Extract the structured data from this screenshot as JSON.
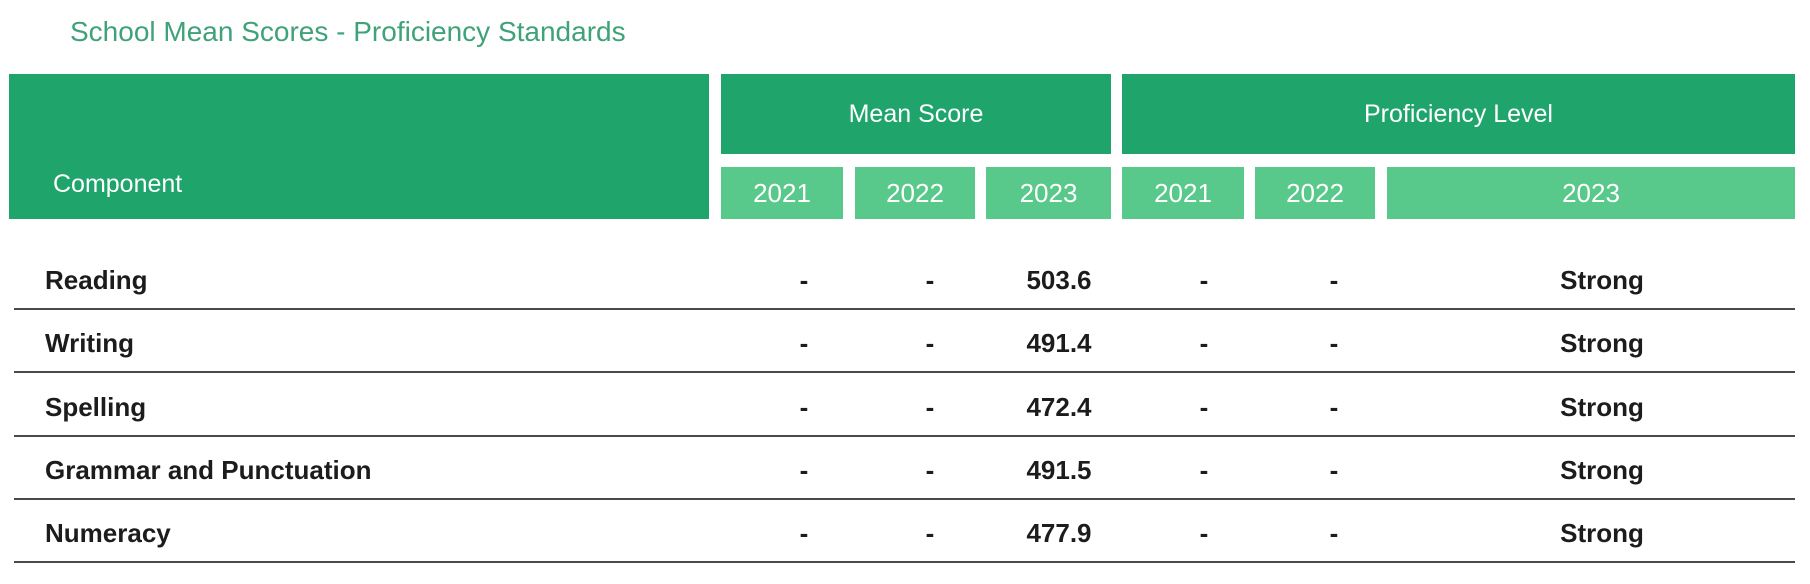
{
  "title": "School Mean Scores - Proficiency Standards",
  "header": {
    "component": "Component",
    "mean_score": "Mean Score",
    "proficiency_level": "Proficiency Level",
    "mean_years": [
      "2021",
      "2022",
      "2023"
    ],
    "prof_years": [
      "2021",
      "2022",
      "2023"
    ]
  },
  "rows": [
    {
      "component": "Reading",
      "mean_2021": "-",
      "mean_2022": "-",
      "mean_2023": "503.6",
      "prof_2021": "-",
      "prof_2022": "-",
      "prof_2023": "Strong"
    },
    {
      "component": "Writing",
      "mean_2021": "-",
      "mean_2022": "-",
      "mean_2023": "491.4",
      "prof_2021": "-",
      "prof_2022": "-",
      "prof_2023": "Strong"
    },
    {
      "component": "Spelling",
      "mean_2021": "-",
      "mean_2022": "-",
      "mean_2023": "472.4",
      "prof_2021": "-",
      "prof_2022": "-",
      "prof_2023": "Strong"
    },
    {
      "component": "Grammar and Punctuation",
      "mean_2021": "-",
      "mean_2022": "-",
      "mean_2023": "491.5",
      "prof_2021": "-",
      "prof_2022": "-",
      "prof_2023": "Strong"
    },
    {
      "component": "Numeracy",
      "mean_2021": "-",
      "mean_2022": "-",
      "mean_2023": "477.9",
      "prof_2021": "-",
      "prof_2022": "-",
      "prof_2023": "Strong"
    }
  ],
  "colors": {
    "header_dark": "#1fa56b",
    "header_light": "#58c98a",
    "title": "#3fa27a"
  }
}
